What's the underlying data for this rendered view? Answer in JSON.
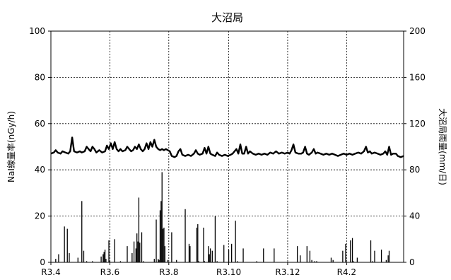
{
  "chart_data": {
    "type": "line",
    "title": "大沼局",
    "ylabel_left": "NaI線量率(nGy/h)",
    "ylabel_right": "大沼局雨量(mm/日)",
    "ylim_left": [
      0,
      100
    ],
    "ylim_right": [
      0,
      200
    ],
    "yticks_left": [
      "0",
      "20",
      "40",
      "60",
      "80",
      "100"
    ],
    "yticks_right": [
      "0",
      "40",
      "80",
      "120",
      "160",
      "200"
    ],
    "xticks": [
      "R3.4",
      "R3.6",
      "R3.8",
      "R3.10",
      "R3.12",
      "R4.2"
    ],
    "xlim_days": [
      0,
      365
    ],
    "xtick_days": [
      0,
      61,
      122,
      184,
      245,
      306
    ],
    "grid": true,
    "series": [
      {
        "kind": "line",
        "axis": "left",
        "color": "#000000",
        "points": [
          [
            0,
            47
          ],
          [
            3,
            47.5
          ],
          [
            5,
            48.5
          ],
          [
            7,
            47.5
          ],
          [
            10,
            47
          ],
          [
            12,
            48
          ],
          [
            15,
            47.5
          ],
          [
            18,
            47
          ],
          [
            20,
            48
          ],
          [
            22,
            54
          ],
          [
            24,
            48
          ],
          [
            27,
            47.5
          ],
          [
            30,
            48
          ],
          [
            32,
            47.5
          ],
          [
            35,
            48
          ],
          [
            37,
            50
          ],
          [
            39,
            49
          ],
          [
            41,
            48
          ],
          [
            43,
            50
          ],
          [
            45,
            49
          ],
          [
            47,
            47.5
          ],
          [
            50,
            48.5
          ],
          [
            53,
            47.5
          ],
          [
            56,
            48
          ],
          [
            58,
            50.5
          ],
          [
            60,
            49
          ],
          [
            62,
            51.5
          ],
          [
            64,
            49
          ],
          [
            66,
            52
          ],
          [
            68,
            49
          ],
          [
            70,
            48
          ],
          [
            72,
            49
          ],
          [
            74,
            48
          ],
          [
            77,
            48.5
          ],
          [
            79,
            50
          ],
          [
            81,
            49
          ],
          [
            83,
            48
          ],
          [
            85,
            48.5
          ],
          [
            87,
            50
          ],
          [
            89,
            49
          ],
          [
            91,
            51
          ],
          [
            93,
            49
          ],
          [
            95,
            48
          ],
          [
            97,
            49
          ],
          [
            99,
            51.5
          ],
          [
            101,
            49
          ],
          [
            103,
            52
          ],
          [
            105,
            50
          ],
          [
            107,
            53
          ],
          [
            109,
            50
          ],
          [
            111,
            49
          ],
          [
            113,
            48.5
          ],
          [
            115,
            49
          ],
          [
            117,
            48.5
          ],
          [
            119,
            49
          ],
          [
            121,
            48.5
          ],
          [
            123,
            48
          ],
          [
            125,
            46
          ],
          [
            128,
            45.5
          ],
          [
            130,
            46
          ],
          [
            132,
            48
          ],
          [
            134,
            49
          ],
          [
            136,
            46.5
          ],
          [
            139,
            46
          ],
          [
            142,
            46.5
          ],
          [
            145,
            46
          ],
          [
            148,
            47
          ],
          [
            150,
            48.5
          ],
          [
            152,
            47
          ],
          [
            154,
            46.5
          ],
          [
            157,
            47
          ],
          [
            159,
            49.5
          ],
          [
            161,
            47
          ],
          [
            163,
            50
          ],
          [
            165,
            47
          ],
          [
            167,
            46.5
          ],
          [
            170,
            46
          ],
          [
            172,
            47.5
          ],
          [
            174,
            46.5
          ],
          [
            177,
            46
          ],
          [
            180,
            46.5
          ],
          [
            183,
            46
          ],
          [
            186,
            46.5
          ],
          [
            188,
            47
          ],
          [
            190,
            48
          ],
          [
            192,
            49
          ],
          [
            194,
            47
          ],
          [
            196,
            51
          ],
          [
            198,
            47
          ],
          [
            200,
            47
          ],
          [
            202,
            50
          ],
          [
            204,
            47
          ],
          [
            206,
            48
          ],
          [
            209,
            47
          ],
          [
            212,
            46.5
          ],
          [
            215,
            47
          ],
          [
            218,
            46.5
          ],
          [
            221,
            47
          ],
          [
            224,
            46.5
          ],
          [
            227,
            47.5
          ],
          [
            230,
            47
          ],
          [
            233,
            48
          ],
          [
            236,
            47
          ],
          [
            239,
            47.5
          ],
          [
            242,
            47
          ],
          [
            245,
            47.5
          ],
          [
            247,
            47
          ],
          [
            249,
            48.5
          ],
          [
            251,
            51
          ],
          [
            253,
            47.5
          ],
          [
            256,
            47
          ],
          [
            259,
            47
          ],
          [
            261,
            47.5
          ],
          [
            263,
            50
          ],
          [
            265,
            47
          ],
          [
            267,
            46.5
          ],
          [
            270,
            47.5
          ],
          [
            272,
            49
          ],
          [
            274,
            47
          ],
          [
            276,
            47.5
          ],
          [
            279,
            47
          ],
          [
            282,
            46.5
          ],
          [
            285,
            47
          ],
          [
            288,
            46.5
          ],
          [
            291,
            47
          ],
          [
            294,
            46.5
          ],
          [
            297,
            46
          ],
          [
            300,
            46.5
          ],
          [
            303,
            47
          ],
          [
            306,
            46.5
          ],
          [
            309,
            47
          ],
          [
            312,
            46.5
          ],
          [
            315,
            47
          ],
          [
            318,
            47.5
          ],
          [
            321,
            47
          ],
          [
            324,
            48
          ],
          [
            326,
            50
          ],
          [
            328,
            47.5
          ],
          [
            330,
            48
          ],
          [
            332,
            47
          ],
          [
            335,
            47.5
          ],
          [
            338,
            47
          ],
          [
            341,
            46.5
          ],
          [
            344,
            47
          ],
          [
            346,
            48
          ],
          [
            348,
            46.5
          ],
          [
            350,
            50
          ],
          [
            352,
            46.5
          ],
          [
            354,
            47
          ],
          [
            357,
            47
          ],
          [
            359,
            46
          ],
          [
            362,
            45.5
          ],
          [
            365,
            46
          ]
        ]
      },
      {
        "kind": "bar",
        "axis": "right",
        "color": "#000000",
        "points": [
          [
            5,
            3
          ],
          [
            8,
            7
          ],
          [
            14,
            31
          ],
          [
            17,
            29
          ],
          [
            19,
            8
          ],
          [
            28,
            4
          ],
          [
            32,
            53
          ],
          [
            34,
            10
          ],
          [
            37,
            1
          ],
          [
            43,
            1
          ],
          [
            52,
            5
          ],
          [
            54,
            7
          ],
          [
            55,
            9
          ],
          [
            56,
            11
          ],
          [
            57,
            3
          ],
          [
            60,
            19
          ],
          [
            61,
            1
          ],
          [
            66,
            20
          ],
          [
            72,
            1
          ],
          [
            79,
            14
          ],
          [
            84,
            8
          ],
          [
            86,
            18
          ],
          [
            88,
            12
          ],
          [
            89,
            25
          ],
          [
            90,
            18
          ],
          [
            91,
            56
          ],
          [
            92,
            17
          ],
          [
            94,
            26
          ],
          [
            96,
            1
          ],
          [
            107,
            3
          ],
          [
            109,
            37
          ],
          [
            111,
            3
          ],
          [
            112,
            2
          ],
          [
            113,
            45
          ],
          [
            114,
            53
          ],
          [
            115,
            78
          ],
          [
            116,
            29
          ],
          [
            117,
            30
          ],
          [
            118,
            14
          ],
          [
            121,
            2
          ],
          [
            125,
            26
          ],
          [
            130,
            2
          ],
          [
            139,
            46
          ],
          [
            143,
            16
          ],
          [
            144,
            14
          ],
          [
            151,
            30
          ],
          [
            152,
            33
          ],
          [
            153,
            1
          ],
          [
            158,
            30
          ],
          [
            159,
            1
          ],
          [
            163,
            14
          ],
          [
            164,
            7
          ],
          [
            165,
            12
          ],
          [
            167,
            10
          ],
          [
            170,
            40
          ],
          [
            172,
            1
          ],
          [
            179,
            15
          ],
          [
            184,
            11
          ],
          [
            187,
            16
          ],
          [
            191,
            36
          ],
          [
            193,
            1
          ],
          [
            199,
            12
          ],
          [
            213,
            1
          ],
          [
            220,
            12
          ],
          [
            231,
            12
          ],
          [
            255,
            14
          ],
          [
            258,
            6
          ],
          [
            265,
            14
          ],
          [
            268,
            10
          ],
          [
            270,
            2
          ],
          [
            273,
            1
          ],
          [
            275,
            1
          ],
          [
            290,
            4
          ],
          [
            292,
            2
          ],
          [
            302,
            10
          ],
          [
            305,
            16
          ],
          [
            310,
            19
          ],
          [
            312,
            21
          ],
          [
            313,
            1
          ],
          [
            317,
            4
          ],
          [
            331,
            19
          ],
          [
            333,
            1
          ],
          [
            335,
            10
          ],
          [
            342,
            11
          ],
          [
            347,
            2
          ],
          [
            349,
            6
          ],
          [
            350,
            10
          ]
        ]
      }
    ]
  }
}
